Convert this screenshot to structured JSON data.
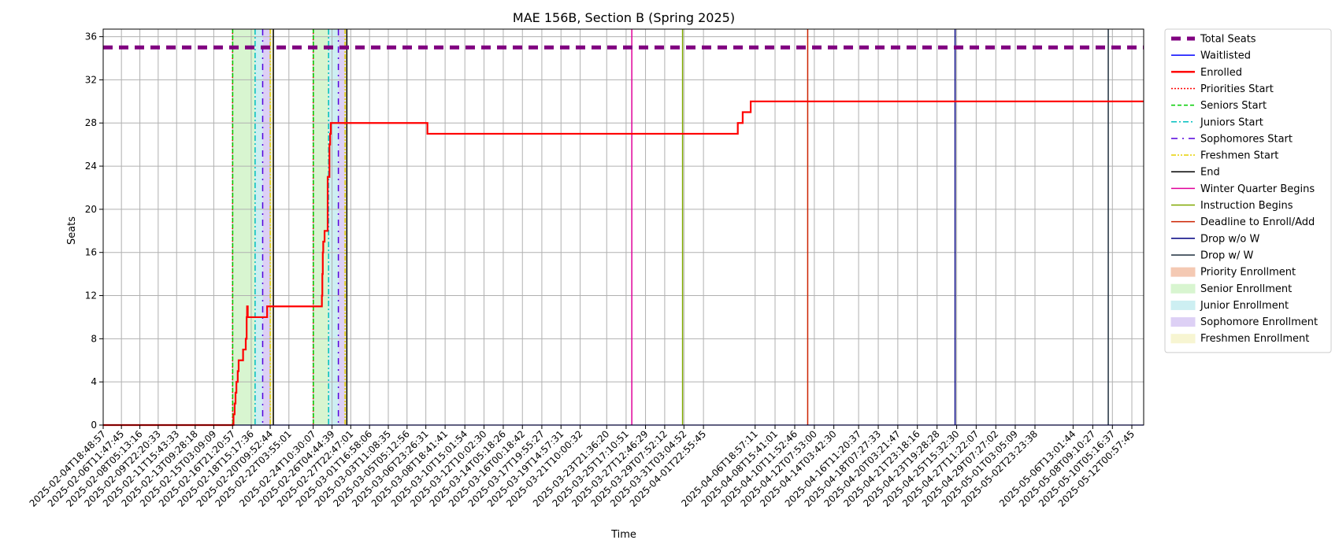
{
  "chart_data": {
    "type": "line",
    "title": "MAE 156B, Section B (Spring 2025)",
    "xlabel": "Time",
    "ylabel": "Seats",
    "x_range": [
      "2025-02-04T18:48:57",
      "2025-05-13T03:30:00"
    ],
    "ylim": [
      0,
      36.7
    ],
    "yticks": [
      0,
      4,
      8,
      12,
      16,
      20,
      24,
      28,
      32,
      36
    ],
    "xticks": [
      "2025-02-04T18:48:57",
      "2025-02-06T11:47:45",
      "2025-02-08T05:13:16",
      "2025-02-09T22:20:33",
      "2025-02-11T15:43:33",
      "2025-02-13T09:28:18",
      "2025-02-15T03:09:09",
      "2025-02-16T21:20:57",
      "2025-02-18T15:17:36",
      "2025-02-20T09:52:44",
      "2025-02-22T03:55:01",
      "2025-02-24T10:30:07",
      "2025-02-26T04:44:39",
      "2025-02-27T22:47:01",
      "2025-03-01T16:58:06",
      "2025-03-03T11:08:35",
      "2025-03-05T05:12:56",
      "2025-03-06T23:26:31",
      "2025-03-08T18:41:41",
      "2025-03-10T15:01:54",
      "2025-03-12T10:02:30",
      "2025-03-14T05:18:26",
      "2025-03-16T00:18:42",
      "2025-03-17T19:55:27",
      "2025-03-19T14:57:31",
      "2025-03-21T10:00:32",
      "2025-03-23T21:36:20",
      "2025-03-25T17:10:51",
      "2025-03-27T12:46:29",
      "2025-03-29T07:52:12",
      "2025-03-31T03:04:52",
      "2025-04-01T22:55:45",
      "2025-04-06T18:57:11",
      "2025-04-08T15:41:01",
      "2025-04-10T11:52:46",
      "2025-04-12T07:53:00",
      "2025-04-14T03:42:30",
      "2025-04-16T11:20:37",
      "2025-04-18T07:27:33",
      "2025-04-20T03:21:47",
      "2025-04-21T23:18:16",
      "2025-04-23T19:28:28",
      "2025-04-25T15:32:30",
      "2025-04-27T11:22:07",
      "2025-04-29T07:27:02",
      "2025-05-01T03:05:09",
      "2025-05-02T23:23:38",
      "2025-05-06T13:01:44",
      "2025-05-08T09:10:27",
      "2025-05-10T05:16:37",
      "2025-05-12T00:57:45"
    ],
    "grid": true,
    "legend_placement": "outside right",
    "series": [
      {
        "name": "Total Seats",
        "color": "#800080",
        "style": "dashed-thick",
        "x": [
          "2025-02-04T18:48:57",
          "2025-05-13T03:30:00"
        ],
        "y": [
          35,
          35
        ]
      },
      {
        "name": "Waitlisted",
        "color": "#0000ff",
        "style": "solid",
        "x": [
          "2025-02-04T18:48:57",
          "2025-05-13T03:30:00"
        ],
        "y": [
          0,
          0
        ]
      },
      {
        "name": "Enrolled",
        "color": "#ff0000",
        "style": "step",
        "x": [
          "2025-02-04T18:48:57",
          "2025-02-16T23:30:00",
          "2025-02-17T02:00:00",
          "2025-02-17T04:00:00",
          "2025-02-17T06:00:00",
          "2025-02-17T09:00:00",
          "2025-02-17T11:00:00",
          "2025-02-17T21:00:00",
          "2025-02-18T03:00:00",
          "2025-02-18T05:00:00",
          "2025-02-18T06:00:00",
          "2025-02-18T07:30:00",
          "2025-02-18T08:30:00",
          "2025-02-20T03:00:00",
          "2025-02-25T06:00:00",
          "2025-02-25T07:00:00",
          "2025-02-25T08:00:00",
          "2025-02-25T09:00:00",
          "2025-02-25T12:00:00",
          "2025-02-25T19:00:00",
          "2025-02-25T23:00:00",
          "2025-02-26T00:30:00",
          "2025-02-26T02:00:00",
          "2025-02-26T03:00:00",
          "2025-03-07T03:00:00",
          "2025-04-05T04:00:00",
          "2025-04-05T15:00:00",
          "2025-04-06T09:00:00",
          "2025-05-13T03:30:00"
        ],
        "y": [
          0,
          1,
          2,
          3,
          4,
          5,
          6,
          7,
          8,
          10,
          11,
          10,
          10,
          11,
          12,
          14,
          16,
          17,
          18,
          23,
          26,
          27,
          28,
          28,
          27,
          28,
          29,
          30,
          30
        ]
      }
    ],
    "events": [
      {
        "name": "Priorities Start",
        "time": "2025-02-16T21:20:57",
        "color": "#ff0000",
        "style": "dotted"
      },
      {
        "name": "Seniors Start",
        "time": "2025-02-16T21:40:00",
        "color": "#00cc00",
        "style": "dashed"
      },
      {
        "name": "Juniors Start",
        "time": "2025-02-19T00:00:00",
        "color": "#00bfbf",
        "style": "dashdot"
      },
      {
        "name": "Sophomores Start",
        "time": "2025-02-19T17:00:00",
        "color": "#5500dd",
        "style": "loose-dashdot"
      },
      {
        "name": "Freshmen Start",
        "time": "2025-02-20T10:00:00",
        "color": "#e6d000",
        "style": "dashdotdot"
      },
      {
        "name": "End",
        "time": "2025-02-20T17:00:00",
        "color": "#000000",
        "style": "solid"
      },
      {
        "name": "Priorities Start",
        "time": "2025-02-24T10:30:07",
        "color": "#ff0000",
        "style": "dotted"
      },
      {
        "name": "Seniors Start",
        "time": "2025-02-24T10:50:00",
        "color": "#00cc00",
        "style": "dashed"
      },
      {
        "name": "Juniors Start",
        "time": "2025-02-25T21:00:00",
        "color": "#00bfbf",
        "style": "dashdot"
      },
      {
        "name": "Sophomores Start",
        "time": "2025-02-26T19:00:00",
        "color": "#5500dd",
        "style": "loose-dashdot"
      },
      {
        "name": "Freshmen Start",
        "time": "2025-02-27T10:00:00",
        "color": "#e6d000",
        "style": "dashdotdot"
      },
      {
        "name": "End",
        "time": "2025-02-27T14:00:00",
        "color": "#000000",
        "style": "solid"
      },
      {
        "name": "Winter Quarter Begins",
        "time": "2025-03-26T06:00:00",
        "color": "#e0009a",
        "style": "solid"
      },
      {
        "name": "Instruction Begins",
        "time": "2025-03-31T00:00:00",
        "color": "#7fa800",
        "style": "solid"
      },
      {
        "name": "Deadline to Enroll/Add",
        "time": "2025-04-11T17:00:00",
        "color": "#cc2200",
        "style": "solid"
      },
      {
        "name": "Drop w/o W",
        "time": "2025-04-25T12:00:00",
        "color": "#000080",
        "style": "solid"
      },
      {
        "name": "Drop w/ W",
        "time": "2025-05-09T20:00:00",
        "color": "#1f2f3f",
        "style": "solid"
      }
    ],
    "spans": [
      {
        "name": "Priority Enrollment",
        "start": "2025-02-16T21:20:57",
        "end": "2025-02-16T21:40:00",
        "color": "#f4c9b3"
      },
      {
        "name": "Senior Enrollment",
        "start": "2025-02-16T21:40:00",
        "end": "2025-02-19T00:00:00",
        "color": "#d8f5d0"
      },
      {
        "name": "Junior Enrollment",
        "start": "2025-02-19T00:00:00",
        "end": "2025-02-19T17:00:00",
        "color": "#cdeff2"
      },
      {
        "name": "Sophomore Enrollment",
        "start": "2025-02-19T17:00:00",
        "end": "2025-02-20T10:00:00",
        "color": "#ddd0f5"
      },
      {
        "name": "Freshmen Enrollment",
        "start": "2025-02-20T10:00:00",
        "end": "2025-02-20T17:00:00",
        "color": "#f7f5d2"
      },
      {
        "name": "Priority Enrollment",
        "start": "2025-02-24T10:30:07",
        "end": "2025-02-24T10:50:00",
        "color": "#f4c9b3"
      },
      {
        "name": "Senior Enrollment",
        "start": "2025-02-24T10:50:00",
        "end": "2025-02-25T21:00:00",
        "color": "#d8f5d0"
      },
      {
        "name": "Junior Enrollment",
        "start": "2025-02-25T21:00:00",
        "end": "2025-02-26T19:00:00",
        "color": "#cdeff2"
      },
      {
        "name": "Sophomore Enrollment",
        "start": "2025-02-26T19:00:00",
        "end": "2025-02-27T10:00:00",
        "color": "#ddd0f5"
      },
      {
        "name": "Freshmen Enrollment",
        "start": "2025-02-27T10:00:00",
        "end": "2025-02-27T14:00:00",
        "color": "#f7f5d2"
      }
    ],
    "legend": [
      {
        "label": "Total Seats",
        "kind": "line",
        "color": "#800080",
        "style": "dashed-thick"
      },
      {
        "label": "Waitlisted",
        "kind": "line",
        "color": "#0000ff",
        "style": "solid"
      },
      {
        "label": "Enrolled",
        "kind": "line",
        "color": "#ff0000",
        "style": "solid-thick"
      },
      {
        "label": "Priorities Start",
        "kind": "line",
        "color": "#ff0000",
        "style": "dotted"
      },
      {
        "label": "Seniors Start",
        "kind": "line",
        "color": "#00cc00",
        "style": "dashed"
      },
      {
        "label": "Juniors Start",
        "kind": "line",
        "color": "#00bfbf",
        "style": "dashdot"
      },
      {
        "label": "Sophomores Start",
        "kind": "line",
        "color": "#5500dd",
        "style": "loose-dashdot"
      },
      {
        "label": "Freshmen Start",
        "kind": "line",
        "color": "#e6d000",
        "style": "dashdotdot"
      },
      {
        "label": "End",
        "kind": "line",
        "color": "#000000",
        "style": "solid"
      },
      {
        "label": "Winter Quarter Begins",
        "kind": "line",
        "color": "#e0009a",
        "style": "solid"
      },
      {
        "label": "Instruction Begins",
        "kind": "line",
        "color": "#7fa800",
        "style": "solid"
      },
      {
        "label": "Deadline to Enroll/Add",
        "kind": "line",
        "color": "#cc2200",
        "style": "solid"
      },
      {
        "label": "Drop w/o W",
        "kind": "line",
        "color": "#000080",
        "style": "solid"
      },
      {
        "label": "Drop w/ W",
        "kind": "line",
        "color": "#1f2f3f",
        "style": "solid"
      },
      {
        "label": "Priority Enrollment",
        "kind": "patch",
        "color": "#f4c9b3"
      },
      {
        "label": "Senior Enrollment",
        "kind": "patch",
        "color": "#d8f5d0"
      },
      {
        "label": "Junior Enrollment",
        "kind": "patch",
        "color": "#cdeff2"
      },
      {
        "label": "Sophomore Enrollment",
        "kind": "patch",
        "color": "#ddd0f5"
      },
      {
        "label": "Freshmen Enrollment",
        "kind": "patch",
        "color": "#f7f5d2"
      }
    ]
  }
}
